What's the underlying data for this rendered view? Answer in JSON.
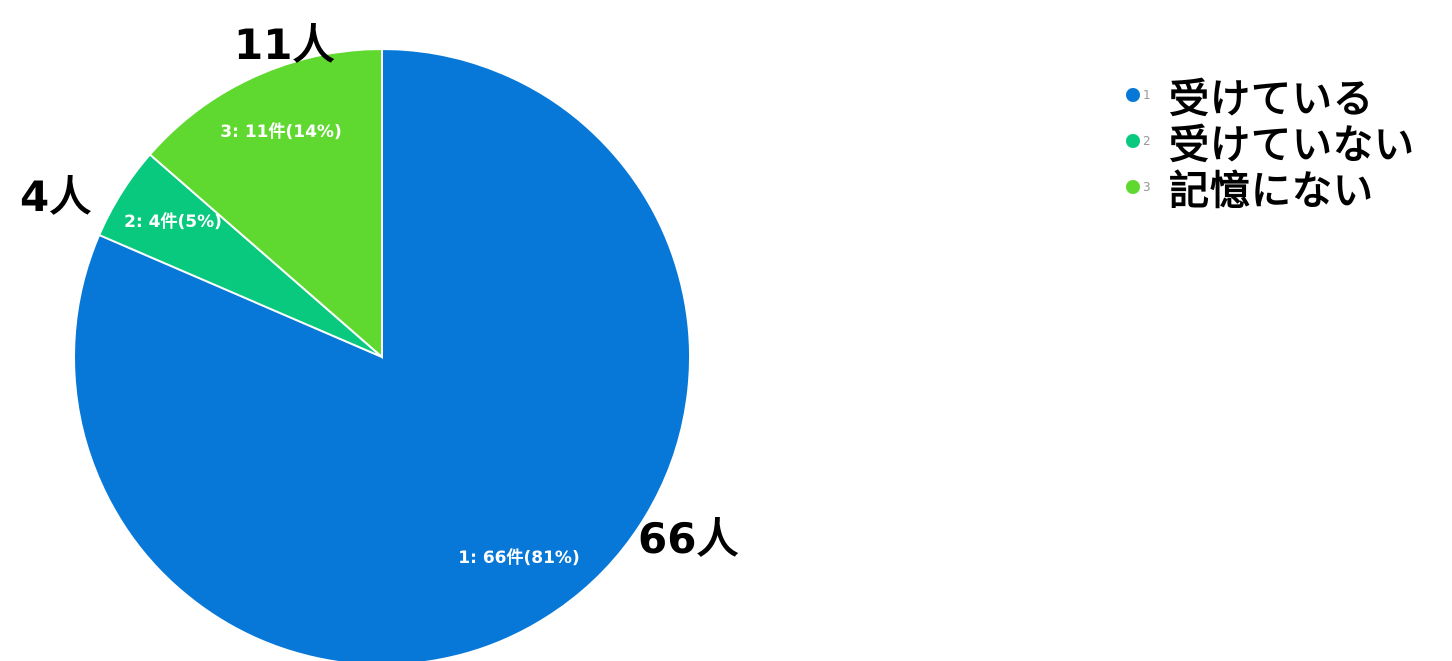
{
  "chart_data": {
    "type": "pie",
    "slices": [
      {
        "index": "1",
        "legend": "受けている",
        "value": 66,
        "inner_label": "1: 66件(81%)",
        "outer_label": "66人",
        "color": "#0778d8"
      },
      {
        "index": "2",
        "legend": "受けていない",
        "value": 4,
        "inner_label": "2: 4件(5%)",
        "outer_label": "4人",
        "color": "#09c97f"
      },
      {
        "index": "3",
        "legend": "記憶にない",
        "value": 11,
        "inner_label": "3: 11件(14%)",
        "outer_label": "11人",
        "color": "#5fd92f"
      }
    ],
    "start_angle_deg": 0,
    "direction": "clockwise",
    "legend_position": "top-right"
  }
}
